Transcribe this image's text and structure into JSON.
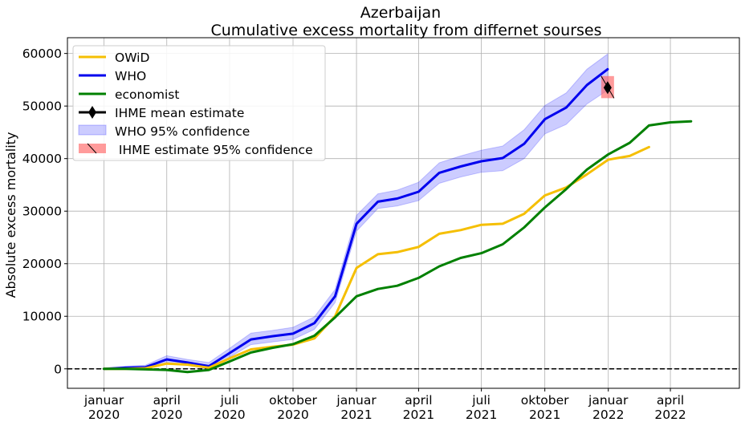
{
  "chart_data": {
    "type": "line",
    "title": "Azerbaijan",
    "subtitle": "Cumulative excess mortality from differnet sourses",
    "ylabel": "Absolute excess mortality",
    "xlabel": "",
    "grid": true,
    "legend_position": "top-left",
    "xlim": [
      "2019-11-09",
      "2022-07-10"
    ],
    "ylim": [
      -3700,
      63000
    ],
    "x_ticks": [
      {
        "date": "2020-01-01",
        "label": [
          "januar",
          "2020"
        ]
      },
      {
        "date": "2020-04-01",
        "label": [
          "april",
          "2020"
        ]
      },
      {
        "date": "2020-07-01",
        "label": [
          "juli",
          "2020"
        ]
      },
      {
        "date": "2020-10-01",
        "label": [
          "oktober",
          "2020"
        ]
      },
      {
        "date": "2021-01-01",
        "label": [
          "januar",
          "2021"
        ]
      },
      {
        "date": "2021-04-01",
        "label": [
          "april",
          "2021"
        ]
      },
      {
        "date": "2021-07-01",
        "label": [
          "juli",
          "2021"
        ]
      },
      {
        "date": "2021-10-01",
        "label": [
          "oktober",
          "2021"
        ]
      },
      {
        "date": "2022-01-01",
        "label": [
          "januar",
          "2022"
        ]
      },
      {
        "date": "2022-04-01",
        "label": [
          "april",
          "2022"
        ]
      }
    ],
    "y_ticks": [
      0,
      10000,
      20000,
      30000,
      40000,
      50000,
      60000
    ],
    "y_tick_labels": [
      "0",
      "10000",
      "20000",
      "30000",
      "40000",
      "50000",
      "60000"
    ],
    "zero_line": {
      "y": 0,
      "style": "dashed",
      "color": "#000000"
    },
    "series": [
      {
        "name": "OWiD",
        "color": "#f5bf03",
        "x": [
          "2020-01-01",
          "2020-02-01",
          "2020-03-01",
          "2020-04-01",
          "2020-05-01",
          "2020-06-01",
          "2020-07-01",
          "2020-08-01",
          "2020-09-01",
          "2020-10-01",
          "2020-11-01",
          "2020-12-01",
          "2021-01-01",
          "2021-02-01",
          "2021-03-01",
          "2021-04-01",
          "2021-05-01",
          "2021-06-01",
          "2021-07-01",
          "2021-08-01",
          "2021-09-01",
          "2021-10-01",
          "2021-11-01",
          "2021-12-01",
          "2022-01-01",
          "2022-02-01",
          "2022-03-01"
        ],
        "y": [
          0,
          0,
          100,
          1000,
          800,
          200,
          2000,
          3700,
          4200,
          4600,
          5800,
          10000,
          19200,
          21800,
          22200,
          23200,
          25700,
          26400,
          27400,
          27600,
          29500,
          33000,
          34500,
          37000,
          39800,
          40500,
          42200
        ]
      },
      {
        "name": "WHO",
        "color": "#0000ee",
        "x": [
          "2020-01-01",
          "2020-02-01",
          "2020-03-01",
          "2020-04-01",
          "2020-05-01",
          "2020-06-01",
          "2020-07-01",
          "2020-08-01",
          "2020-09-01",
          "2020-10-01",
          "2020-11-01",
          "2020-12-01",
          "2021-01-01",
          "2021-02-01",
          "2021-03-01",
          "2021-04-01",
          "2021-05-01",
          "2021-06-01",
          "2021-07-01",
          "2021-08-01",
          "2021-09-01",
          "2021-10-01",
          "2021-11-01",
          "2021-12-01",
          "2021-12-31"
        ],
        "y": [
          0,
          200,
          300,
          1800,
          1200,
          500,
          3000,
          5600,
          6200,
          6700,
          8700,
          13800,
          27600,
          31800,
          32400,
          33700,
          37300,
          38500,
          39500,
          40100,
          42800,
          47500,
          49700,
          54000,
          57000
        ]
      },
      {
        "name": "economist",
        "color": "#008000",
        "x": [
          "2020-01-01",
          "2020-02-01",
          "2020-03-01",
          "2020-04-01",
          "2020-05-01",
          "2020-06-01",
          "2020-07-01",
          "2020-08-01",
          "2020-09-01",
          "2020-10-01",
          "2020-11-01",
          "2020-12-01",
          "2021-01-01",
          "2021-02-01",
          "2021-03-01",
          "2021-04-01",
          "2021-05-01",
          "2021-06-01",
          "2021-07-01",
          "2021-08-01",
          "2021-09-01",
          "2021-10-01",
          "2021-11-01",
          "2021-12-01",
          "2022-01-01",
          "2022-02-01",
          "2022-03-01",
          "2022-04-01",
          "2022-05-01"
        ],
        "y": [
          0,
          0,
          -100,
          -200,
          -600,
          -200,
          1400,
          3100,
          4000,
          4700,
          6300,
          9800,
          13800,
          15200,
          15800,
          17300,
          19500,
          21100,
          22000,
          23700,
          26900,
          30700,
          34200,
          37900,
          40800,
          43000,
          46300,
          46900,
          47100
        ]
      }
    ],
    "who_confidence": {
      "name": "WHO 95% confidence",
      "color": "#0000ff",
      "opacity": 0.2,
      "x": [
        "2020-01-01",
        "2020-02-01",
        "2020-03-01",
        "2020-04-01",
        "2020-05-01",
        "2020-06-01",
        "2020-07-01",
        "2020-08-01",
        "2020-09-01",
        "2020-10-01",
        "2020-11-01",
        "2020-12-01",
        "2021-01-01",
        "2021-02-01",
        "2021-03-01",
        "2021-04-01",
        "2021-05-01",
        "2021-06-01",
        "2021-07-01",
        "2021-08-01",
        "2021-09-01",
        "2021-10-01",
        "2021-11-01",
        "2021-12-01",
        "2021-12-31"
      ],
      "lower": [
        0,
        0,
        -100,
        1200,
        700,
        -100,
        2200,
        4600,
        5100,
        5600,
        7500,
        12600,
        26200,
        30500,
        31000,
        32000,
        35300,
        36500,
        37400,
        37700,
        40000,
        44700,
        46500,
        50400,
        53000
      ],
      "upper": [
        0,
        500,
        700,
        2500,
        1800,
        1200,
        3900,
        6800,
        7300,
        7900,
        9900,
        15100,
        29200,
        33300,
        34000,
        35500,
        39200,
        40500,
        41600,
        42400,
        45500,
        50100,
        52500,
        57000,
        59900
      ]
    },
    "ihme": {
      "mean_name": "IHME mean estimate",
      "ci_name": " IHME estimate 95% confidence",
      "date": "2021-12-31",
      "mean": 53500,
      "lower": 51500,
      "upper": 55700,
      "box_color": "#ff6666",
      "marker_color": "#000000"
    }
  }
}
